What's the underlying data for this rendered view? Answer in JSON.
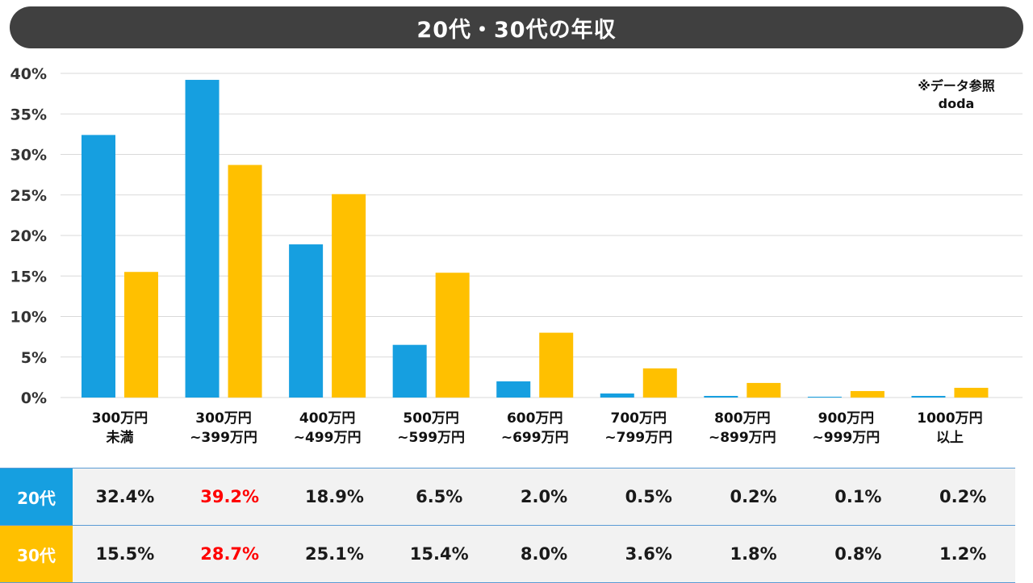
{
  "title": "20代・30代の年収",
  "source_note": {
    "line1": "※データ参照",
    "line2": "doda"
  },
  "colors": {
    "series1": "#169fe0",
    "series2": "#ffc000",
    "title_bg": "#404040",
    "highlight_text": "#ff0000",
    "gridline": "#d9d9d9"
  },
  "chart_data": {
    "type": "bar",
    "categories": [
      [
        "300万円",
        "未満"
      ],
      [
        "300万円",
        "~399万円"
      ],
      [
        "400万円",
        "~499万円"
      ],
      [
        "500万円",
        "~599万円"
      ],
      [
        "600万円",
        "~699万円"
      ],
      [
        "700万円",
        "~799万円"
      ],
      [
        "800万円",
        "~899万円"
      ],
      [
        "900万円",
        "~999万円"
      ],
      [
        "1000万円",
        "以上"
      ]
    ],
    "series": [
      {
        "name": "20代",
        "values": [
          32.4,
          39.2,
          18.9,
          6.5,
          2.0,
          0.5,
          0.2,
          0.1,
          0.2
        ]
      },
      {
        "name": "30代",
        "values": [
          15.5,
          28.7,
          25.1,
          15.4,
          8.0,
          3.6,
          1.8,
          0.8,
          1.2
        ]
      }
    ],
    "ylim": [
      0,
      40
    ],
    "yticks": [
      "0%",
      "5%",
      "10%",
      "15%",
      "20%",
      "25%",
      "30%",
      "35%",
      "40%"
    ],
    "grid": true,
    "legend": "none"
  },
  "table": {
    "rows": [
      {
        "label": "20代",
        "cells": [
          "32.4%",
          "39.2%",
          "18.9%",
          "6.5%",
          "2.0%",
          "0.5%",
          "0.2%",
          "0.1%",
          "0.2%"
        ],
        "highlight_index": 1
      },
      {
        "label": "30代",
        "cells": [
          "15.5%",
          "28.7%",
          "25.1%",
          "15.4%",
          "8.0%",
          "3.6%",
          "1.8%",
          "0.8%",
          "1.2%"
        ],
        "highlight_index": 1
      }
    ]
  }
}
